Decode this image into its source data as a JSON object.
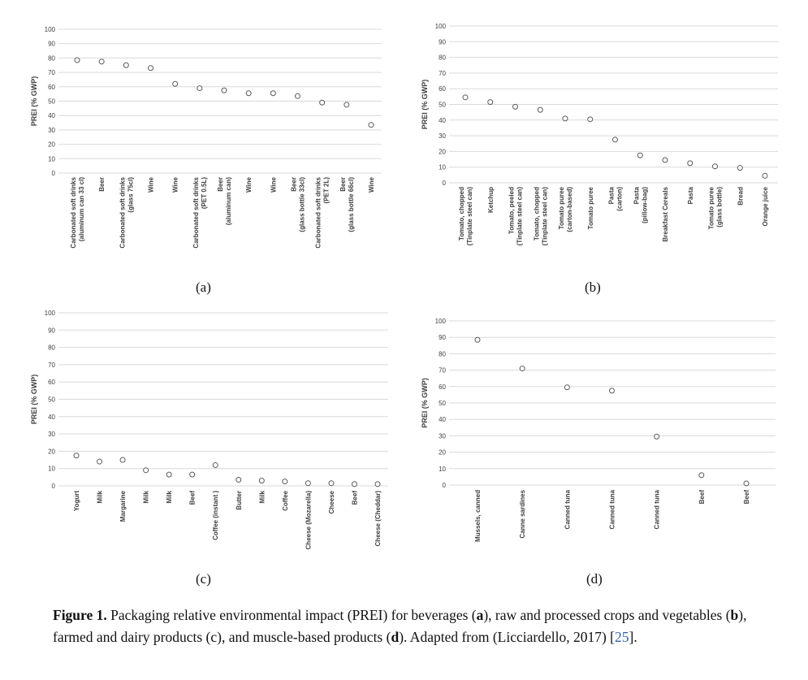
{
  "chart_data": [
    {
      "panel": "a",
      "type": "scatter",
      "ylabel": "PREI (% GWP)",
      "ylim": [
        0,
        100
      ],
      "yticks": [
        0,
        10,
        20,
        30,
        40,
        50,
        60,
        70,
        80,
        90,
        100
      ],
      "grid": true,
      "categories": [
        [
          "Carbonated soft drinks",
          "(aluminum can 33 cl)"
        ],
        [
          "Beer"
        ],
        [
          "Carbonated soft drinks",
          "(glass 75cl)"
        ],
        [
          "Wine"
        ],
        [
          "Wine"
        ],
        [
          "Carbonated soft drinks",
          "(PET 0.5L)"
        ],
        [
          "Beer",
          "(aluminum can)"
        ],
        [
          "Wine"
        ],
        [
          "Wine"
        ],
        [
          "Beer",
          "(glass bottle 33cl)"
        ],
        [
          "Carbonated soft drinks",
          "(PET 2L)"
        ],
        [
          "Beer",
          "(glass bottle 66cl)"
        ],
        [
          "Wine"
        ]
      ],
      "values": [
        78.5,
        77.5,
        75,
        73,
        62,
        59,
        57.5,
        55.5,
        55.5,
        53.5,
        49,
        47.5,
        33.5
      ]
    },
    {
      "panel": "b",
      "type": "scatter",
      "ylabel": "PREI (% GWP)",
      "ylim": [
        0,
        100
      ],
      "yticks": [
        0,
        10,
        20,
        30,
        40,
        50,
        60,
        70,
        80,
        90,
        100
      ],
      "grid": true,
      "categories": [
        [
          "Tomato, chopped",
          "(Tinplate steel can)"
        ],
        [
          "Ketchup"
        ],
        [
          "Tomato, peeled",
          "(Tinplate steel can)"
        ],
        [
          "Tomato, chopped",
          "(Tinplate steel can)"
        ],
        [
          "Tomato puree",
          "(carton-based)"
        ],
        [
          "Tomato puree"
        ],
        [
          "Pasta",
          "(carton)"
        ],
        [
          "Pasta",
          "(pillow-bag)"
        ],
        [
          "Breakfast Cereals"
        ],
        [
          "Pasta"
        ],
        [
          "Tomato puree",
          "(glass bottle)"
        ],
        [
          "Bread"
        ],
        [
          "Orange juice"
        ]
      ],
      "values": [
        54.5,
        51.5,
        48.5,
        46.5,
        41,
        40.5,
        27.5,
        17.5,
        14.5,
        12.5,
        10.5,
        9.5,
        4.5
      ]
    },
    {
      "panel": "c",
      "type": "scatter",
      "ylabel": "PREI (% GWP)",
      "ylim": [
        0,
        100
      ],
      "yticks": [
        0,
        10,
        20,
        30,
        40,
        50,
        60,
        70,
        80,
        90,
        100
      ],
      "grid": true,
      "categories": [
        [
          "Yogurt"
        ],
        [
          "Milk"
        ],
        [
          "Margarine"
        ],
        [
          "Milk"
        ],
        [
          "Milk"
        ],
        [
          "Beef"
        ],
        [
          "Coffee (instant )"
        ],
        [
          "Butter"
        ],
        [
          "Milk"
        ],
        [
          "Coffee"
        ],
        [
          "Cheese (Mozarella)"
        ],
        [
          "Cheese"
        ],
        [
          "Beef"
        ],
        [
          "Cheese (Cheddar)"
        ]
      ],
      "values": [
        17.5,
        14,
        15,
        9,
        6.5,
        6.5,
        12,
        3.5,
        3,
        2.5,
        1.5,
        1.5,
        1,
        1
      ]
    },
    {
      "panel": "d",
      "type": "scatter",
      "ylabel": "PREI (% GWP)",
      "ylim": [
        0,
        100
      ],
      "yticks": [
        0,
        10,
        20,
        30,
        40,
        50,
        60,
        70,
        80,
        90,
        100
      ],
      "grid": true,
      "categories": [
        [
          "Mussels, canned"
        ],
        [
          "Canne sardines"
        ],
        [
          "Canned tuna"
        ],
        [
          "Canned tuna"
        ],
        [
          "Canned tuna"
        ],
        [
          "Beef"
        ],
        [
          "Beef"
        ]
      ],
      "values": [
        88.5,
        71,
        59.5,
        57.5,
        29.5,
        6,
        1
      ]
    }
  ],
  "panel_labels": [
    "(a)",
    "(b)",
    "(c)",
    "(d)"
  ],
  "caption": {
    "bold": "Figure 1.",
    "text_1": "Packaging relative environmental impact (PREI) for beverages (",
    "a": "a",
    "text_2": "), raw and processed crops and vegetables (",
    "b": "b",
    "text_3": "), farmed and dairy products (c), and muscle-based products (",
    "d": "d",
    "text_4": ").  Adapted from (Licciardello, 2017) [",
    "ref": "25",
    "text_5": "]."
  },
  "colors": {
    "grid": "#d9d9d9",
    "marker": "#595959",
    "text": "#404040",
    "ref": "#3465a4"
  }
}
